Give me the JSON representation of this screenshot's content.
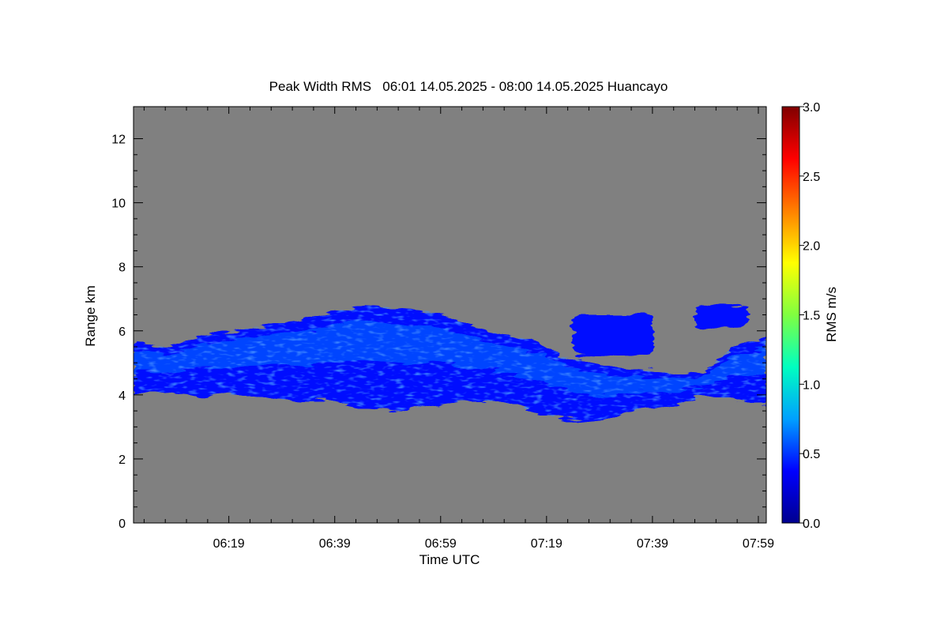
{
  "chart_data": {
    "type": "heatmap",
    "title": "Peak Width RMS   06:01 14.05.2025 - 08:00 14.05.2025 Huancayo",
    "xlabel": "Time UTC",
    "ylabel": "Range km",
    "x_tick_labels": [
      "06:19",
      "06:39",
      "06:59",
      "07:19",
      "07:39",
      "07:59"
    ],
    "x_tick_minutes": [
      18,
      38,
      58,
      78,
      98,
      118
    ],
    "xlim_minutes": [
      0,
      119.5
    ],
    "y_tick_values": [
      0,
      2,
      4,
      6,
      8,
      10,
      12
    ],
    "ylim": [
      0,
      13
    ],
    "colorbar": {
      "label": "RMS m/s",
      "range": [
        0,
        3
      ],
      "tick_values": [
        0,
        0.5,
        1,
        1.5,
        2,
        2.5,
        3
      ],
      "tick_labels": [
        "0.0",
        "0.5",
        "1.0",
        "1.5",
        "2.0",
        "2.5",
        "3.0"
      ],
      "colors": [
        "#00008f",
        "#0000ff",
        "#00a0ff",
        "#00ffc0",
        "#80ff40",
        "#ffff00",
        "#ff8000",
        "#ff0000",
        "#800000"
      ]
    },
    "background_color": "#808080",
    "echo_layer": {
      "top_km": [
        5.6,
        5.5,
        5.8,
        6.0,
        6.2,
        6.3,
        6.6,
        6.8,
        6.7,
        6.6,
        6.2,
        5.9,
        5.7,
        5.2,
        4.9,
        4.8,
        4.7,
        4.6,
        5.5,
        5.8
      ],
      "bottom_km": [
        4.0,
        4.1,
        4.0,
        4.0,
        3.9,
        3.8,
        3.8,
        3.6,
        3.5,
        3.7,
        3.8,
        3.8,
        3.5,
        3.2,
        3.2,
        3.5,
        3.6,
        3.9,
        3.9,
        3.7
      ],
      "typical_rms": 0.4,
      "core_rms": 0.7,
      "peak_rms": 1.1
    },
    "upper_patches": [
      {
        "minute_start": 83,
        "minute_end": 98,
        "top_km": 6.5,
        "bottom_km": 5.2
      },
      {
        "minute_start": 106,
        "minute_end": 116,
        "top_km": 6.8,
        "bottom_km": 6.1
      }
    ]
  }
}
